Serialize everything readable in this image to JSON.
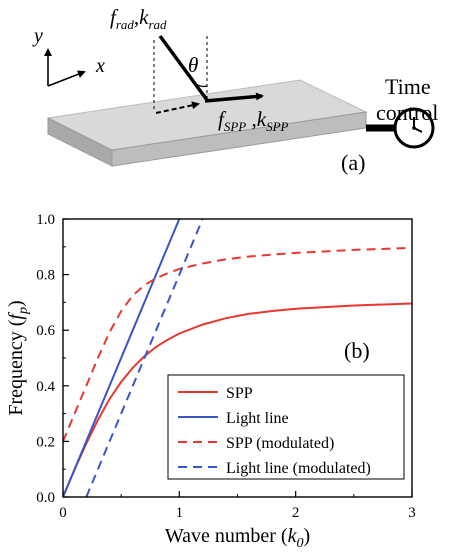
{
  "panel_a": {
    "label": "(a)",
    "axis_y": "y",
    "axis_x": "x",
    "rad_label": {
      "f": "f",
      "f_sub": "rad",
      "sep": ",",
      "k": "k",
      "k_sub": "rad"
    },
    "spp_label": {
      "f": "f",
      "f_sub": "SPP",
      "sep": " ,",
      "k": "k",
      "k_sub": "SPP"
    },
    "angle": "θ",
    "time_control": [
      "Time",
      "control"
    ],
    "clock_icon": "clock-icon"
  },
  "panel_b": {
    "label": "(b)"
  },
  "chart_data": {
    "type": "line",
    "xlabel": "Wave number",
    "xlabel_sym": "k",
    "xlabel_sub": "0",
    "ylabel": "Frequency",
    "ylabel_sym": "f",
    "ylabel_sub": "p",
    "xlim": [
      0,
      3
    ],
    "ylim": [
      0,
      1.0
    ],
    "xticks": [
      0,
      1,
      2,
      3
    ],
    "yticks": [
      0.0,
      0.2,
      0.4,
      0.6,
      0.8,
      1.0
    ],
    "ytick_labels": [
      "0.0",
      "0.2",
      "0.4",
      "0.6",
      "0.8",
      "1.0"
    ],
    "grid": false,
    "legend_position": "bottom-right",
    "series": [
      {
        "name": "SPP",
        "color": "#e8382f",
        "dash": "solid",
        "x": [
          0,
          0.1,
          0.2,
          0.3,
          0.4,
          0.5,
          0.6,
          0.7,
          0.8,
          0.9,
          1.0,
          1.2,
          1.4,
          1.6,
          1.8,
          2.0,
          2.5,
          3.0
        ],
        "y": [
          0,
          0.099,
          0.192,
          0.277,
          0.352,
          0.414,
          0.465,
          0.506,
          0.54,
          0.566,
          0.588,
          0.62,
          0.643,
          0.659,
          0.669,
          0.677,
          0.689,
          0.696
        ]
      },
      {
        "name": "Light line",
        "color": "#3a55c8",
        "dash": "solid",
        "x": [
          0,
          1.0
        ],
        "y": [
          0,
          1.0
        ]
      },
      {
        "name": "SPP (modulated)",
        "color": "#e8382f",
        "dash": "dashed",
        "x": [
          0,
          0.1,
          0.2,
          0.3,
          0.4,
          0.5,
          0.6,
          0.7,
          0.8,
          0.9,
          1.0,
          1.2,
          1.4,
          1.6,
          1.8,
          2.0,
          2.5,
          3.0
        ],
        "y": [
          0.2,
          0.3,
          0.4,
          0.5,
          0.592,
          0.669,
          0.725,
          0.762,
          0.787,
          0.805,
          0.82,
          0.84,
          0.855,
          0.865,
          0.872,
          0.878,
          0.889,
          0.896
        ]
      },
      {
        "name": "Light line (modulated)",
        "color": "#3a55c8",
        "dash": "dashed",
        "x": [
          0.2,
          1.2
        ],
        "y": [
          0,
          1.0
        ]
      }
    ]
  }
}
